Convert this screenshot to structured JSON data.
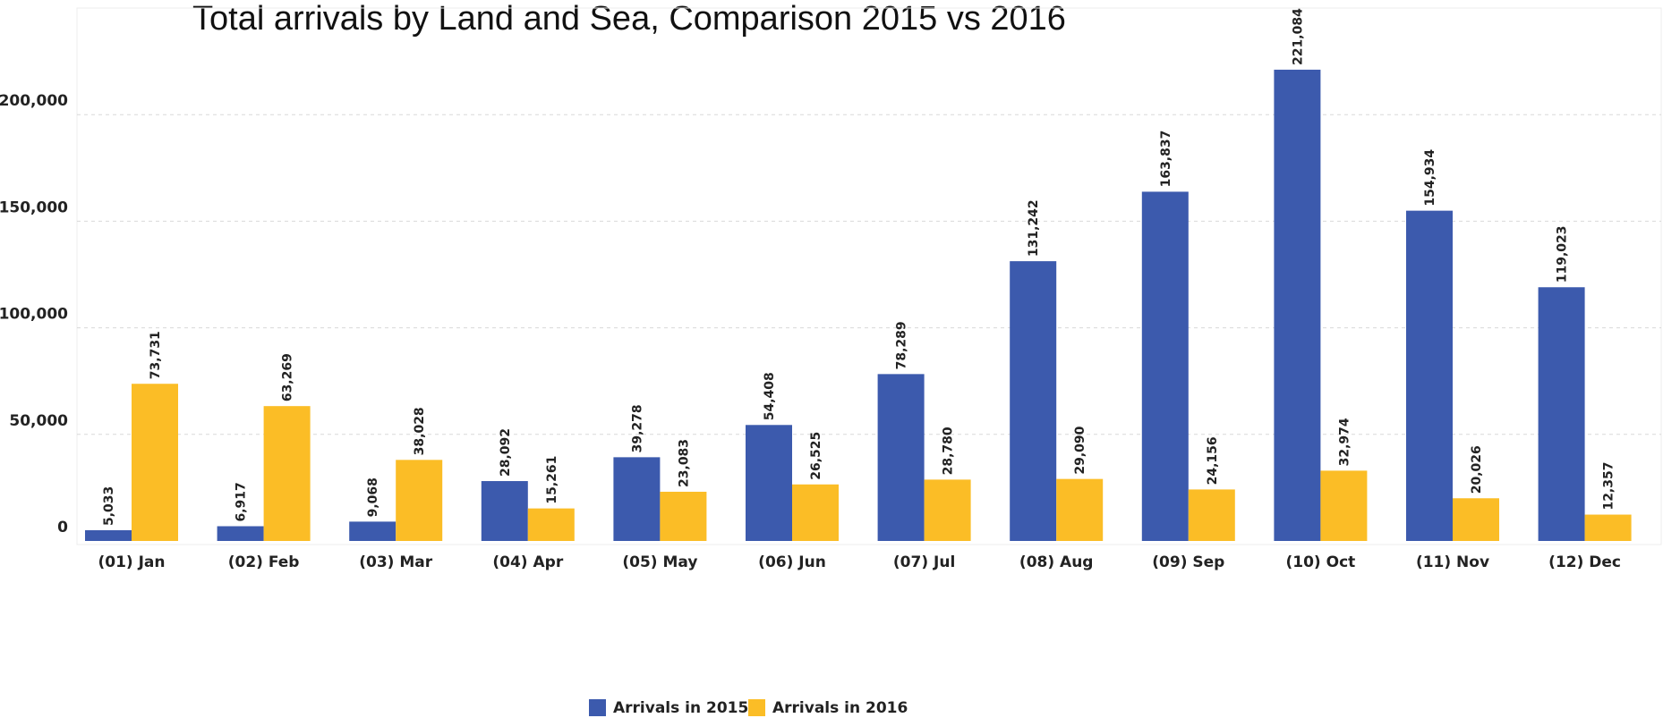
{
  "chart_data": {
    "type": "bar",
    "title": "Total arrivals by Land and Sea, Comparison 2015 vs 2016",
    "xlabel": "",
    "ylabel": "",
    "categories": [
      "(01) Jan",
      "(02) Feb",
      "(03) Mar",
      "(04) Apr",
      "(05) May",
      "(06) Jun",
      "(07) Jul",
      "(08) Aug",
      "(09) Sep",
      "(10) Oct",
      "(11) Nov",
      "(12) Dec"
    ],
    "series": [
      {
        "name": "Arrivals in 2015",
        "color": "#3c5aad",
        "values": [
          5033,
          6917,
          9068,
          28092,
          39278,
          54408,
          78289,
          131242,
          163837,
          221084,
          154934,
          119023
        ],
        "labels": [
          "5,033",
          "6,917",
          "9,068",
          "28,092",
          "39,278",
          "54,408",
          "78,289",
          "131,242",
          "163,837",
          "221,084",
          "154,934",
          "119,023"
        ]
      },
      {
        "name": "Arrivals in 2016",
        "color": "#fbbd26",
        "values": [
          73731,
          63269,
          38028,
          15261,
          23083,
          26525,
          28780,
          29090,
          24156,
          32974,
          20026,
          12357
        ],
        "labels": [
          "73,731",
          "63,269",
          "38,028",
          "15,261",
          "23,083",
          "26,525",
          "28,780",
          "29,090",
          "24,156",
          "32,974",
          "20,026",
          "12,357"
        ]
      }
    ],
    "yticks": [
      0,
      50000,
      100000,
      150000,
      200000
    ],
    "ytick_labels": [
      "0",
      "50,000",
      "100,000",
      "150,000",
      "200,000"
    ],
    "ylim": [
      0,
      250000
    ],
    "grid": true,
    "legend_position": "bottom"
  }
}
